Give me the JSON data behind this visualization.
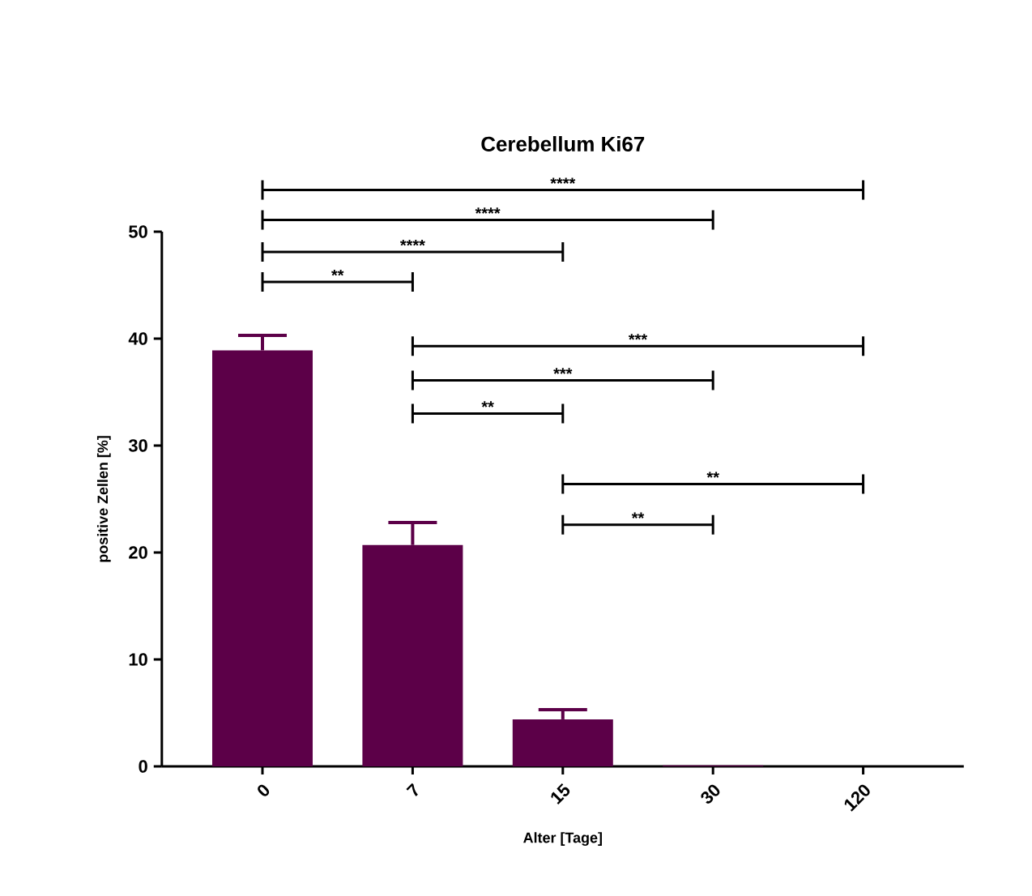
{
  "chart_data": {
    "type": "bar",
    "title": "Cerebellum Ki67",
    "xlabel": "Alter [Tage]",
    "ylabel": "positive Zellen [%]",
    "categories": [
      "0",
      "7",
      "15",
      "30",
      "120"
    ],
    "values": [
      38.9,
      20.7,
      4.4,
      0.1,
      0
    ],
    "errors": [
      1.4,
      2.1,
      0.9,
      null,
      null
    ],
    "color": "#5c0048",
    "ylim": [
      0,
      50
    ],
    "yticks": [
      0,
      10,
      20,
      30,
      40,
      50
    ],
    "annotations": [
      "****",
      "****",
      "****",
      "**",
      "***",
      "***",
      "**",
      "**",
      "**"
    ]
  }
}
